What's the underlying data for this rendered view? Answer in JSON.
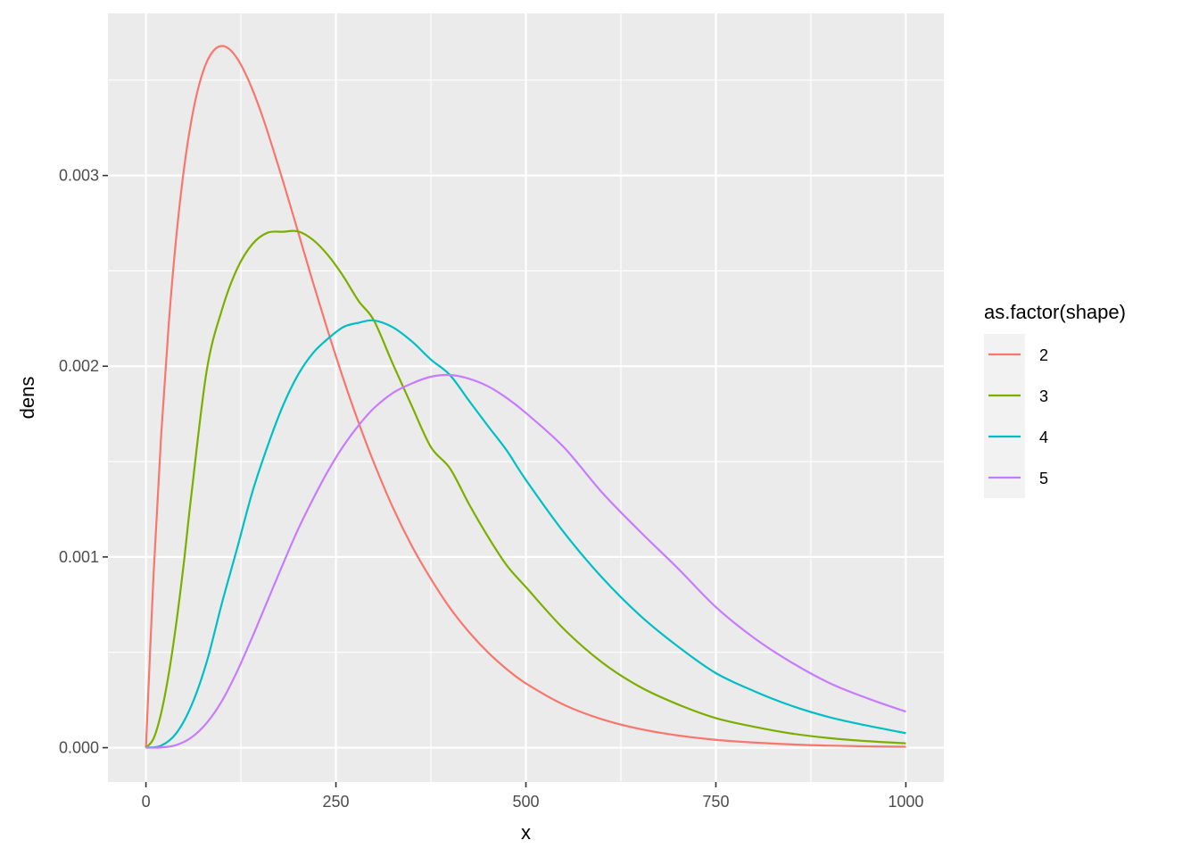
{
  "chart_data": {
    "type": "line",
    "xlabel": "x",
    "ylabel": "dens",
    "xlim": [
      -50,
      1050
    ],
    "ylim": [
      -0.00018,
      0.00385
    ],
    "x_ticks": [
      0,
      250,
      500,
      750,
      1000
    ],
    "x_tick_labels": [
      "0",
      "250",
      "500",
      "750",
      "1000"
    ],
    "y_ticks": [
      0,
      0.001,
      0.002,
      0.003
    ],
    "y_tick_labels": [
      "0.000",
      "0.001",
      "0.002",
      "0.003"
    ],
    "grid": true,
    "legend": {
      "title": "as.factor(shape)",
      "position": "right"
    },
    "colors": {
      "panel_background": "#EBEBEB",
      "grid": "#FFFFFF",
      "legend_key_background": "#F2F2F2"
    },
    "series": [
      {
        "name": "2",
        "color": "#F8766D",
        "x": [
          0,
          10,
          20,
          30,
          40,
          50,
          60,
          70,
          80,
          90,
          100,
          110,
          120,
          130,
          140,
          150,
          160,
          180,
          200,
          220,
          240,
          260,
          280,
          300,
          325,
          350,
          375,
          400,
          425,
          450,
          475,
          500,
          550,
          600,
          650,
          700,
          750,
          800,
          850,
          900,
          950,
          1000
        ],
        "y": [
          0,
          0.000905,
          0.001637,
          0.002222,
          0.002681,
          0.003033,
          0.003293,
          0.003476,
          0.003595,
          0.003659,
          0.003679,
          0.003662,
          0.003614,
          0.003542,
          0.003452,
          0.003347,
          0.00323,
          0.002975,
          0.002707,
          0.002437,
          0.002177,
          0.001931,
          0.001703,
          0.001494,
          0.001259,
          0.001057,
          0.000885,
          0.000733,
          0.000607,
          0.0005,
          0.000411,
          0.000337,
          0.000225,
          0.000149,
          9.8e-05,
          6.4e-05,
          4.1e-05,
          2.7e-05,
          1.7e-05,
          1.1e-05,
          7e-06,
          5e-06
        ]
      },
      {
        "name": "3",
        "color": "#7CAE00",
        "x": [
          0,
          10,
          20,
          30,
          40,
          50,
          60,
          80,
          100,
          120,
          140,
          160,
          180,
          200,
          220,
          240,
          260,
          280,
          300,
          325,
          350,
          375,
          400,
          425,
          450,
          475,
          500,
          550,
          600,
          650,
          700,
          750,
          800,
          850,
          900,
          950,
          1000
        ],
        "y": [
          0,
          4.76e-05,
          0.000181,
          0.000387,
          0.000655,
          0.000974,
          0.001333,
          0.001978,
          0.002296,
          0.002511,
          0.00264,
          0.0027,
          0.002705,
          0.002707,
          0.002662,
          0.00258,
          0.00247,
          0.002341,
          0.00224,
          0.002011,
          0.00179,
          0.001576,
          0.001465,
          0.001278,
          0.001107,
          0.000955,
          0.000842,
          0.000622,
          0.000448,
          0.000319,
          0.000227,
          0.000155,
          0.00011,
          7.4e-05,
          5e-05,
          3.4e-05,
          2.3e-05
        ]
      },
      {
        "name": "4",
        "color": "#00BFC4",
        "x": [
          0,
          20,
          40,
          60,
          80,
          100,
          120,
          140,
          160,
          180,
          200,
          220,
          240,
          260,
          280,
          300,
          325,
          350,
          375,
          400,
          425,
          450,
          475,
          500,
          550,
          600,
          650,
          700,
          750,
          800,
          850,
          900,
          950,
          1000
        ],
        "y": [
          0,
          1.06e-05,
          7.59e-05,
          0.000222,
          0.00045,
          0.000758,
          0.001045,
          0.00134,
          0.00158,
          0.00179,
          0.001954,
          0.00207,
          0.002146,
          0.002206,
          0.002228,
          0.00224,
          0.002204,
          0.00213,
          0.002035,
          0.001954,
          0.00182,
          0.001687,
          0.001557,
          0.001404,
          0.001129,
          0.000893,
          0.000694,
          0.000531,
          0.000391,
          0.000297,
          0.000219,
          0.000159,
          0.000115,
          7.6e-05
        ]
      },
      {
        "name": "5",
        "color": "#C77CFF",
        "x": [
          0,
          20,
          40,
          60,
          80,
          100,
          120,
          140,
          160,
          180,
          200,
          220,
          240,
          260,
          280,
          300,
          325,
          350,
          375,
          400,
          425,
          450,
          475,
          500,
          550,
          600,
          650,
          700,
          750,
          800,
          850,
          900,
          950,
          1000
        ],
        "y": [
          0,
          1.3e-06,
          1.4e-05,
          5.4e-05,
          0.00013,
          0.000245,
          0.0004,
          0.00058,
          0.00077,
          0.00096,
          0.001143,
          0.001305,
          0.001454,
          0.001583,
          0.001691,
          0.00178,
          0.00186,
          0.00191,
          0.001945,
          0.001954,
          0.001935,
          0.001895,
          0.001833,
          0.001755,
          0.001575,
          0.001339,
          0.001134,
          0.00094,
          0.000737,
          0.000576,
          0.000446,
          0.000338,
          0.000258,
          0.000189
        ]
      }
    ]
  }
}
